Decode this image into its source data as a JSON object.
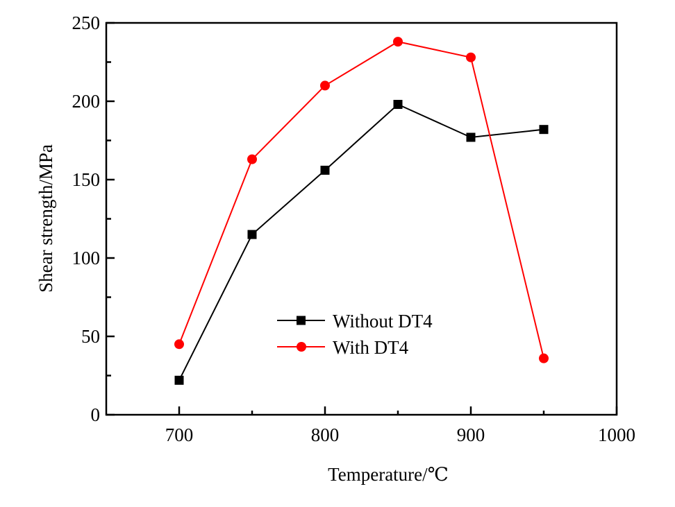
{
  "chart_data": {
    "type": "line",
    "title": "",
    "xlabel": "Temperature/℃",
    "ylabel": "Shear strength/MPa",
    "xlim": [
      650,
      1000
    ],
    "ylim": [
      0,
      250
    ],
    "xticks": [
      700,
      800,
      900,
      1000
    ],
    "xticks_minor": [
      750,
      850,
      950
    ],
    "yticks": [
      0,
      50,
      100,
      150,
      200,
      250
    ],
    "yticks_minor": [
      25,
      75,
      125,
      175,
      225
    ],
    "grid": false,
    "legend_position": "center",
    "x": [
      700,
      750,
      800,
      850,
      900,
      950
    ],
    "series": [
      {
        "name": "Without DT4",
        "color": "#000000",
        "marker": "square",
        "values": [
          22,
          115,
          156,
          198,
          177,
          182
        ]
      },
      {
        "name": "With DT4",
        "color": "#ff0000",
        "marker": "circle",
        "values": [
          45,
          163,
          210,
          238,
          228,
          36
        ]
      }
    ]
  }
}
